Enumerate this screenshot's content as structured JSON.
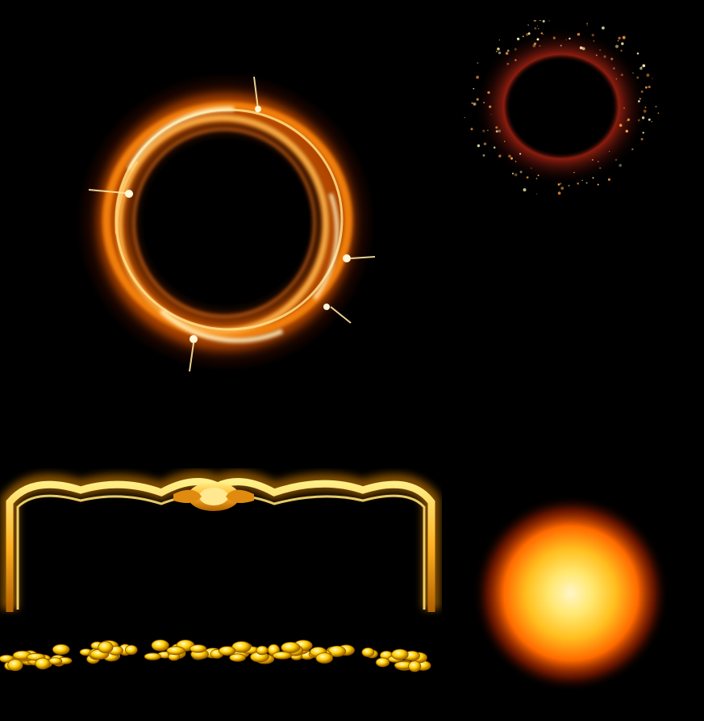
{
  "sheet": {
    "background_color": "#000000",
    "sprites": [
      {
        "id": "fire-ring",
        "kind": "flaming ring",
        "colors": [
          "#ff6a00",
          "#ffb347",
          "#fff2c0"
        ]
      },
      {
        "id": "spark-ring",
        "kind": "ember sparkle ring",
        "colors": [
          "#8a1a10",
          "#ffc860"
        ]
      },
      {
        "id": "frame",
        "kind": "golden ornate panel frame with coin pile",
        "colors": [
          "#ffb020",
          "#fff080",
          "#ffd000"
        ]
      },
      {
        "id": "orb",
        "kind": "glowing sun orb",
        "colors": [
          "#fff6c8",
          "#ffd030",
          "#ff6a00"
        ]
      }
    ]
  }
}
